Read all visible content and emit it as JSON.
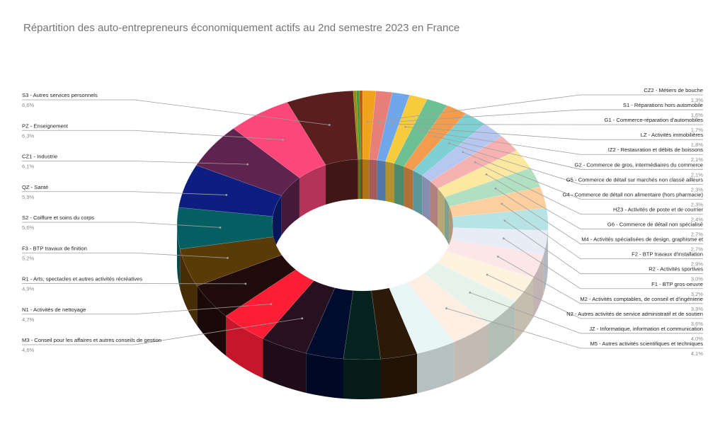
{
  "chart_data": {
    "type": "pie",
    "style": "3d-donut",
    "title": "Répartition des auto-entrepreneurs économiquement actifs au 2nd semestre 2023 en France",
    "legend": "labels-with-leader-lines",
    "slices": [
      {
        "label": "CZ2 - Métiers de bouche",
        "value": 1.3,
        "pct": "1,3%",
        "color": "#f2a31d",
        "side": "right"
      },
      {
        "label": "S1 - Réparations hors automobile",
        "value": 1.6,
        "pct": "1,6%",
        "color": "#e87f78",
        "side": "right"
      },
      {
        "label": "G1 - Commerce-réparation d'automobiles",
        "value": 1.7,
        "pct": "1,7%",
        "color": "#6fa7ea",
        "side": "right"
      },
      {
        "label": "LZ - Activités immobilières",
        "value": 1.8,
        "pct": "1,8%",
        "color": "#f8cb3f",
        "side": "right"
      },
      {
        "label": "IZ2 - Restauration et débits de boissons",
        "value": 2.1,
        "pct": "2,1%",
        "color": "#6dc093",
        "side": "right"
      },
      {
        "label": "G2 - Commerce de gros, intermédiaires du commerce",
        "value": 2.1,
        "pct": "2,1%",
        "color": "#f49c4e",
        "side": "right"
      },
      {
        "label": "G5 - Commerce de détail sur marchés non classé ailleurs",
        "value": 2.3,
        "pct": "2,3%",
        "color": "#7ed0d3",
        "side": "right"
      },
      {
        "label": "G4 - Commerce de détail non alimentaire (hors pharmacie)",
        "value": 2.3,
        "pct": "2,3%",
        "color": "#b6c7f0",
        "side": "right"
      },
      {
        "label": "HZ3 - Activités de poste et de courrier",
        "value": 2.4,
        "pct": "2,4%",
        "color": "#f5b2b1",
        "side": "right"
      },
      {
        "label": "G6 - Commerce de détail non spécialisé",
        "value": 2.7,
        "pct": "2,7%",
        "color": "#fde8a0",
        "side": "right"
      },
      {
        "label": "M4 - Activités spécialisées de design, graphisme et",
        "value": 2.7,
        "pct": "2,7%",
        "color": "#b0dfc2",
        "side": "right"
      },
      {
        "label": "F2 - BTP travaux d'installation",
        "value": 2.9,
        "pct": "2,9%",
        "color": "#fdcf9e",
        "side": "right"
      },
      {
        "label": "R2 - Activités sportives",
        "value": 3.0,
        "pct": "3,0%",
        "color": "#b7e3e5",
        "side": "right"
      },
      {
        "label": "F1 - BTP gros-oeuvre",
        "value": 3.2,
        "pct": "3,2%",
        "color": "#e7ecf7",
        "side": "right"
      },
      {
        "label": "M2 - Activités comptables, de conseil et d'ingénierie",
        "value": 3.3,
        "pct": "3,3%",
        "color": "#fbe6e8",
        "side": "right"
      },
      {
        "label": "N2 - Autres activités de service administratif et de soutien",
        "value": 3.6,
        "pct": "3,6%",
        "color": "#fdf3df",
        "side": "right"
      },
      {
        "label": "JZ - Informatique, information et communication",
        "value": 4.0,
        "pct": "4,0%",
        "color": "#e6f3ea",
        "side": "right"
      },
      {
        "label": "M5 - Autres activités scientifiques et techniques",
        "value": 4.1,
        "pct": "4,1%",
        "color": "#fdeee3",
        "side": "right"
      },
      {
        "label": "",
        "value": 3.9,
        "pct": "",
        "color": "#e8f6f6",
        "side": "none"
      },
      {
        "label": "",
        "value": 3.6,
        "pct": "",
        "color": "#2a1a07",
        "side": "none"
      },
      {
        "label": "",
        "value": 3.6,
        "pct": "",
        "color": "#05221f",
        "side": "none"
      },
      {
        "label": "",
        "value": 3.7,
        "pct": "",
        "color": "#000b2e",
        "side": "none"
      },
      {
        "label": "M3 - Conseil pour les affaires et autres conseils de gestion",
        "value": 4.6,
        "pct": "4,6%",
        "color": "#27101f",
        "side": "left"
      },
      {
        "label": "N1 - Activités de nettoyage",
        "value": 4.7,
        "pct": "4,7%",
        "color": "#fd1e36",
        "side": "left"
      },
      {
        "label": "R1 - Arts, spectacles et autres activités récréatives",
        "value": 4.9,
        "pct": "4,9%",
        "color": "#200b0b",
        "side": "left"
      },
      {
        "label": "F3 - BTP travaux de finition",
        "value": 5.2,
        "pct": "5,2%",
        "color": "#5a3a05",
        "side": "left"
      },
      {
        "label": "S2 - Coiffure et soins du corps",
        "value": 5.6,
        "pct": "5,6%",
        "color": "#045f62",
        "side": "left"
      },
      {
        "label": "QZ - Santé",
        "value": 5.9,
        "pct": "5,9%",
        "color": "#0d1e80",
        "side": "left"
      },
      {
        "label": "CZ1 - Industrie",
        "value": 6.1,
        "pct": "6,1%",
        "color": "#5f2350",
        "side": "left"
      },
      {
        "label": "PZ - Enseignement",
        "value": 6.3,
        "pct": "6,3%",
        "color": "#fb4779",
        "side": "left"
      },
      {
        "label": "S3 - Autres services personnels",
        "value": 6.6,
        "pct": "6,6%",
        "color": "#5a1e1e",
        "side": "left"
      },
      {
        "label": "",
        "value": 0.3,
        "pct": "",
        "color": "#9b8a12",
        "side": "none"
      },
      {
        "label": "",
        "value": 0.3,
        "pct": "",
        "color": "#3f9a3a",
        "side": "none"
      },
      {
        "label": "",
        "value": 0.3,
        "pct": "",
        "color": "#b85a0f",
        "side": "none"
      }
    ]
  }
}
